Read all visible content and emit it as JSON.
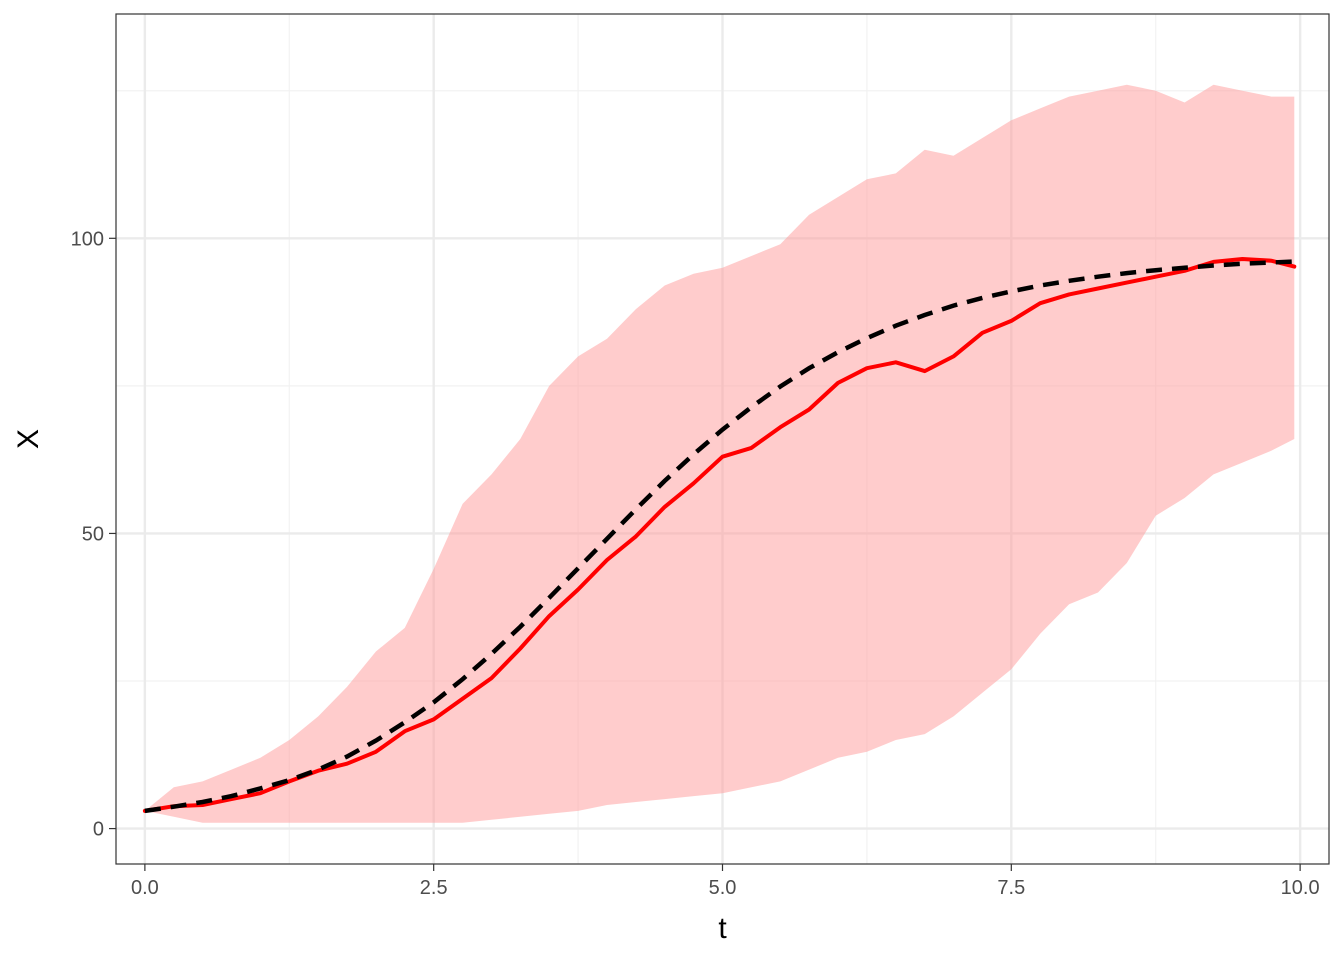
{
  "chart_data": {
    "type": "line",
    "title": "",
    "xlabel": "t",
    "ylabel": "X",
    "xlim": [
      -0.25,
      10.25
    ],
    "ylim": [
      -6,
      138
    ],
    "xticks": [
      0.0,
      2.5,
      5.0,
      7.5,
      10.0
    ],
    "xtick_labels": [
      "0.0",
      "2.5",
      "5.0",
      "7.5",
      "10.0"
    ],
    "yticks": [
      0,
      50,
      100
    ],
    "ytick_labels": [
      "0",
      "50",
      "100"
    ],
    "x_minor_grid": [
      1.25,
      3.75,
      6.25,
      8.75
    ],
    "y_minor_grid": [
      25,
      75,
      125
    ],
    "grid": true,
    "legend": "none",
    "colors": {
      "band": "#FF9999",
      "band_opacity": 0.5,
      "mean_line": "#FF0000",
      "reference_line": "#000000",
      "grid_major": "#EBEBEB",
      "grid_minor": "#F2F2F2",
      "panel_border": "#333333"
    },
    "band": {
      "x": [
        0.0,
        0.25,
        0.5,
        0.75,
        1.0,
        1.25,
        1.5,
        1.75,
        2.0,
        2.25,
        2.5,
        2.75,
        3.0,
        3.25,
        3.5,
        3.75,
        4.0,
        4.25,
        4.5,
        4.75,
        5.0,
        5.25,
        5.5,
        5.75,
        6.0,
        6.25,
        6.5,
        6.75,
        7.0,
        7.25,
        7.5,
        7.75,
        8.0,
        8.25,
        8.5,
        8.75,
        9.0,
        9.25,
        9.5,
        9.75,
        9.95
      ],
      "lower": [
        3,
        2,
        1,
        1,
        1,
        1,
        1,
        1,
        1,
        1,
        1,
        1,
        1.5,
        2,
        2.5,
        3,
        4,
        4.5,
        5,
        5.5,
        6,
        7,
        8,
        10,
        12,
        13,
        15,
        16,
        19,
        23,
        27,
        33,
        38,
        40,
        45,
        53,
        56,
        60,
        62,
        64,
        66
      ],
      "upper": [
        3,
        7,
        8,
        10,
        12,
        15,
        19,
        24,
        30,
        34,
        44,
        55,
        60,
        66,
        75,
        80,
        83,
        88,
        92,
        94,
        95,
        97,
        99,
        104,
        107,
        110,
        111,
        115,
        114,
        117,
        120,
        122,
        124,
        125,
        126,
        125,
        123,
        126,
        125,
        124,
        124
      ]
    },
    "series": [
      {
        "x": [
          0.0,
          0.25,
          0.5,
          0.75,
          1.0,
          1.25,
          1.5,
          1.75,
          2.0,
          2.25,
          2.5,
          2.75,
          3.0,
          3.25,
          3.5,
          3.75,
          4.0,
          4.25,
          4.5,
          4.75,
          5.0,
          5.25,
          5.5,
          5.75,
          6.0,
          6.25,
          6.5,
          6.75,
          7.0,
          7.25,
          7.5,
          7.75,
          8.0,
          8.25,
          8.5,
          8.75,
          9.0,
          9.25,
          9.5,
          9.75,
          9.95
        ],
        "values": [
          3.0,
          3.8,
          4.0,
          5.0,
          6.0,
          8.0,
          9.8,
          11.0,
          13.0,
          16.5,
          18.5,
          22.0,
          25.5,
          30.5,
          36.0,
          40.5,
          45.5,
          49.5,
          54.5,
          58.5,
          63.0,
          64.5,
          68.0,
          71.0,
          75.5,
          78.0,
          79.0,
          77.5,
          80.0,
          84.0,
          86.0,
          89.0,
          90.5,
          91.5,
          92.5,
          93.5,
          94.5,
          96.0,
          96.5,
          96.2,
          95.2
        ]
      },
      {
        "x": [
          0.0,
          0.25,
          0.5,
          0.75,
          1.0,
          1.25,
          1.5,
          1.75,
          2.0,
          2.25,
          2.5,
          2.75,
          3.0,
          3.25,
          3.5,
          3.75,
          4.0,
          4.25,
          4.5,
          4.75,
          5.0,
          5.25,
          5.5,
          5.75,
          6.0,
          6.25,
          6.5,
          6.75,
          7.0,
          7.25,
          7.5,
          7.75,
          8.0,
          8.25,
          8.5,
          8.75,
          9.0,
          9.25,
          9.5,
          9.75,
          10.0
        ],
        "values": [
          3.0,
          3.7,
          4.5,
          5.5,
          6.8,
          8.2,
          10.0,
          12.2,
          14.9,
          18.0,
          21.4,
          25.3,
          29.6,
          34.2,
          39.1,
          44.1,
          49.1,
          54.1,
          58.9,
          63.4,
          67.6,
          71.4,
          74.9,
          78.0,
          80.7,
          83.1,
          85.2,
          87.0,
          88.6,
          89.9,
          91.0,
          92.0,
          92.8,
          93.5,
          94.1,
          94.6,
          95.0,
          95.4,
          95.7,
          95.9,
          96.1
        ]
      }
    ]
  }
}
